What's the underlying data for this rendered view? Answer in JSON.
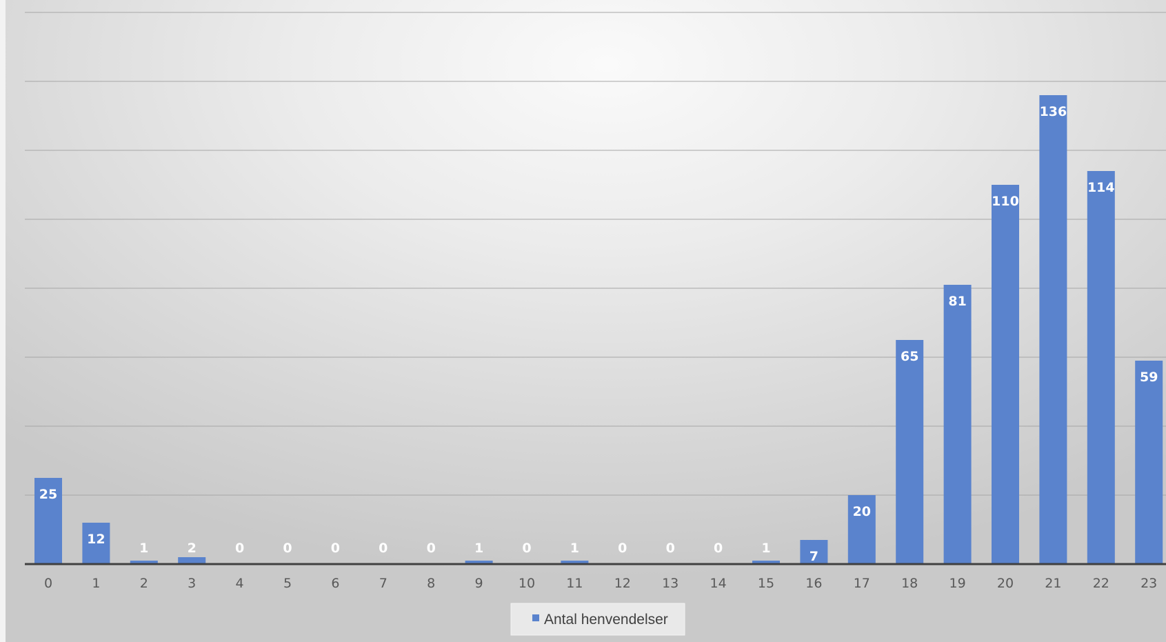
{
  "chart_data": {
    "type": "bar",
    "title": "",
    "xlabel": "",
    "ylabel": "",
    "categories": [
      "0",
      "1",
      "2",
      "3",
      "4",
      "5",
      "6",
      "7",
      "8",
      "9",
      "10",
      "11",
      "12",
      "13",
      "14",
      "15",
      "16",
      "17",
      "18",
      "19",
      "20",
      "21",
      "22",
      "23"
    ],
    "series": [
      {
        "name": "Antal henvendelser",
        "color": "#5a83cd",
        "values": [
          25,
          12,
          1,
          2,
          0,
          0,
          0,
          0,
          0,
          1,
          0,
          1,
          0,
          0,
          0,
          1,
          7,
          20,
          65,
          81,
          110,
          136,
          114,
          59
        ]
      }
    ],
    "ylim": [
      0,
      160
    ],
    "y_grid_step": 20,
    "grid": true,
    "data_labels": true,
    "legend_position": "bottom"
  }
}
